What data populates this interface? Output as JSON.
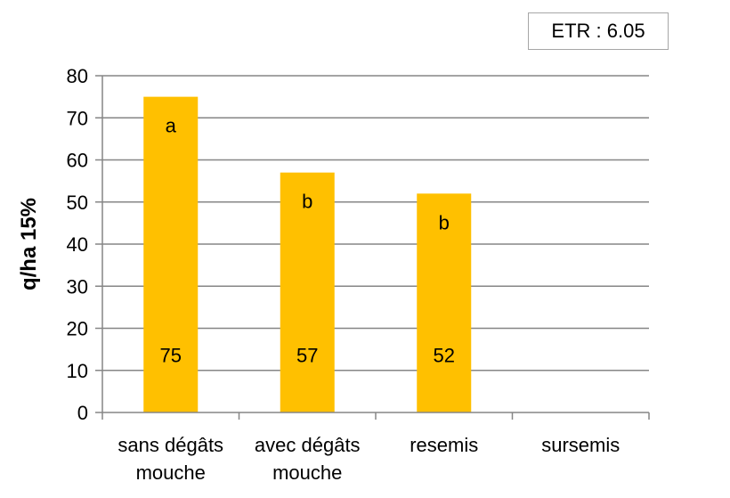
{
  "annotation_box": "ETR : 6.05",
  "chart_data": {
    "type": "bar",
    "categories": [
      "sans dégâts\nmouche",
      "avec dégâts\nmouche",
      "resemis",
      "sursemis"
    ],
    "values": [
      75,
      57,
      52,
      null
    ],
    "value_labels": [
      "75",
      "57",
      "52",
      ""
    ],
    "significance_letters": [
      "a",
      "b",
      "b",
      ""
    ],
    "ylabel": "q/ha 15%",
    "xlabel": "",
    "ylim": [
      0,
      80
    ],
    "yticks": [
      0,
      10,
      20,
      30,
      40,
      50,
      60,
      70,
      80
    ],
    "grid": true,
    "bar_color": "#FFC000"
  }
}
